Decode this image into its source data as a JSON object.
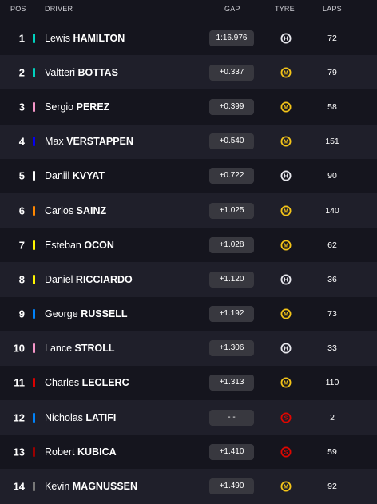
{
  "header": {
    "pos": "POS",
    "driver": "DRIVER",
    "gap": "GAP",
    "tyre": "TYRE",
    "laps": "LAPS"
  },
  "tyre_colors": {
    "H": "#e8e8ee",
    "M": "#f5c518",
    "S": "#e10600"
  },
  "rows": [
    {
      "pos": "1",
      "first": "Lewis",
      "last": "HAMILTON",
      "team_color": "#00d2be",
      "gap": "1:16.976",
      "tyre": "H",
      "tyre_icon": "hard-tyre-icon",
      "laps": "72"
    },
    {
      "pos": "2",
      "first": "Valtteri",
      "last": "BOTTAS",
      "team_color": "#00d2be",
      "gap": "+0.337",
      "tyre": "M",
      "tyre_icon": "medium-tyre-icon",
      "laps": "79"
    },
    {
      "pos": "3",
      "first": "Sergio",
      "last": "PEREZ",
      "team_color": "#f596c8",
      "gap": "+0.399",
      "tyre": "M",
      "tyre_icon": "medium-tyre-icon",
      "laps": "58"
    },
    {
      "pos": "4",
      "first": "Max",
      "last": "VERSTAPPEN",
      "team_color": "#0600ef",
      "gap": "+0.540",
      "tyre": "M",
      "tyre_icon": "medium-tyre-icon",
      "laps": "151"
    },
    {
      "pos": "5",
      "first": "Daniil",
      "last": "KVYAT",
      "team_color": "#ffffff",
      "gap": "+0.722",
      "tyre": "H",
      "tyre_icon": "hard-tyre-icon",
      "laps": "90"
    },
    {
      "pos": "6",
      "first": "Carlos",
      "last": "SAINZ",
      "team_color": "#ff8700",
      "gap": "+1.025",
      "tyre": "M",
      "tyre_icon": "medium-tyre-icon",
      "laps": "140"
    },
    {
      "pos": "7",
      "first": "Esteban",
      "last": "OCON",
      "team_color": "#fff500",
      "gap": "+1.028",
      "tyre": "M",
      "tyre_icon": "medium-tyre-icon",
      "laps": "62"
    },
    {
      "pos": "8",
      "first": "Daniel",
      "last": "RICCIARDO",
      "team_color": "#fff500",
      "gap": "+1.120",
      "tyre": "H",
      "tyre_icon": "hard-tyre-icon",
      "laps": "36"
    },
    {
      "pos": "9",
      "first": "George",
      "last": "RUSSELL",
      "team_color": "#0082fa",
      "gap": "+1.192",
      "tyre": "M",
      "tyre_icon": "medium-tyre-icon",
      "laps": "73"
    },
    {
      "pos": "10",
      "first": "Lance",
      "last": "STROLL",
      "team_color": "#f596c8",
      "gap": "+1.306",
      "tyre": "H",
      "tyre_icon": "hard-tyre-icon",
      "laps": "33"
    },
    {
      "pos": "11",
      "first": "Charles",
      "last": "LECLERC",
      "team_color": "#dc0000",
      "gap": "+1.313",
      "tyre": "M",
      "tyre_icon": "medium-tyre-icon",
      "laps": "110"
    },
    {
      "pos": "12",
      "first": "Nicholas",
      "last": "LATIFI",
      "team_color": "#0082fa",
      "gap": "- -",
      "tyre": "S",
      "tyre_icon": "soft-tyre-icon",
      "laps": "2"
    },
    {
      "pos": "13",
      "first": "Robert",
      "last": "KUBICA",
      "team_color": "#9b0000",
      "gap": "+1.410",
      "tyre": "S",
      "tyre_icon": "soft-tyre-icon",
      "laps": "59"
    },
    {
      "pos": "14",
      "first": "Kevin",
      "last": "MAGNUSSEN",
      "team_color": "#787878",
      "gap": "+1.490",
      "tyre": "M",
      "tyre_icon": "medium-tyre-icon",
      "laps": "92"
    }
  ]
}
